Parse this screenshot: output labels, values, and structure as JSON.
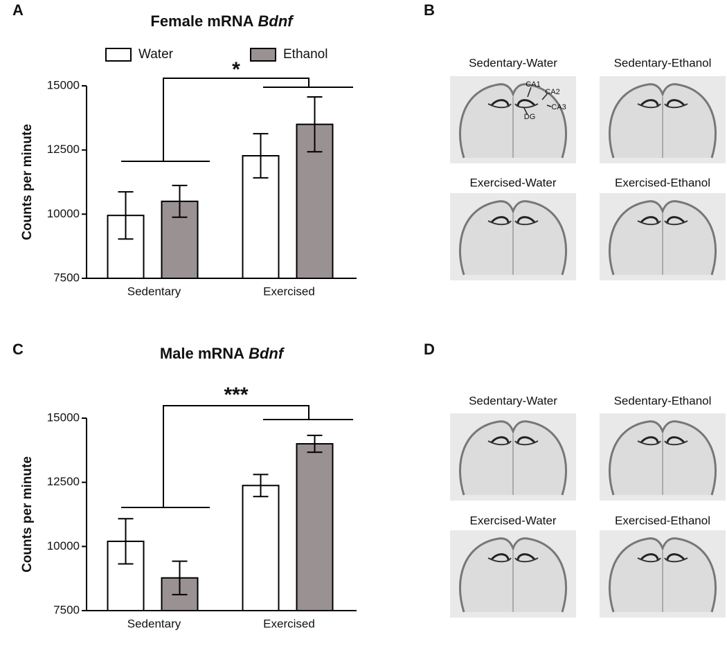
{
  "chart_data": [
    {
      "type": "bar",
      "title": "Female mRNA",
      "title_italic": "Bdnf",
      "ylabel": "Counts per minute",
      "categories": [
        "Sedentary",
        "Exercised"
      ],
      "series": [
        {
          "name": "Water",
          "color": "#ffffff",
          "values": [
            9950,
            12275
          ],
          "errors": [
            920,
            860
          ]
        },
        {
          "name": "Ethanol",
          "color": "#9a9292",
          "values": [
            10500,
            13500
          ],
          "errors": [
            620,
            1070
          ]
        }
      ],
      "ylim": [
        7500,
        15000
      ],
      "yticks": [
        7500,
        10000,
        12500,
        15000
      ],
      "legend": "top",
      "annotation": "*"
    },
    {
      "type": "bar",
      "title": "Male mRNA",
      "title_italic": "Bdnf",
      "ylabel": "Counts per minute",
      "categories": [
        "Sedentary",
        "Exercised"
      ],
      "series": [
        {
          "color": "#ffffff",
          "values": [
            10200,
            12375
          ],
          "errors": [
            880,
            430
          ]
        },
        {
          "color": "#9a9292",
          "values": [
            8775,
            14000
          ],
          "errors": [
            650,
            330
          ]
        }
      ],
      "ylim": [
        7500,
        15000
      ],
      "yticks": [
        7500,
        10000,
        12500,
        15000
      ],
      "annotation": "***"
    }
  ],
  "panel_labels": [
    "A",
    "B",
    "C",
    "D"
  ],
  "image_captions": [
    [
      "Sedentary-Water",
      "Sedentary-Ethanol",
      "Exercised-Water",
      "Exercised-Ethanol"
    ],
    [
      "Sedentary-Water",
      "Sedentary-Ethanol",
      "Exercised-Water",
      "Exercised-Ethanol"
    ]
  ],
  "region_labels": [
    "CA1",
    "CA2",
    "CA3",
    "DG"
  ]
}
